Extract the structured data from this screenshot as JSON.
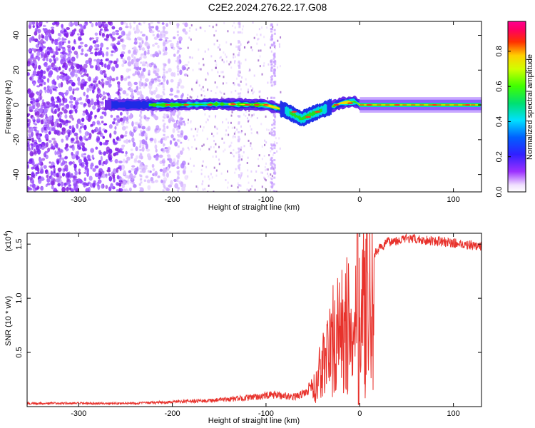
{
  "title": "C2E2.2024.276.22.17.G08",
  "chart_data": [
    {
      "type": "heatmap",
      "xlabel": "Height of straight line (km)",
      "ylabel": "Frequency (Hz)",
      "xlim": [
        -355,
        130
      ],
      "ylim": [
        -50,
        48
      ],
      "xticks": [
        -300,
        -200,
        -100,
        0,
        100
      ],
      "yticks": [
        -40,
        -20,
        0,
        20,
        40
      ],
      "colorbar": {
        "label": "Normalized spectral amplitude",
        "range": [
          0,
          0.97
        ],
        "ticks": [
          "0.0",
          "0.2",
          "0.4",
          "0.6",
          "0.8"
        ],
        "tick_values": [
          0.0,
          0.2,
          0.4,
          0.6,
          0.8
        ],
        "colormap": "rainbow (white-violet-blue-cyan-green-yellow-red-magenta)"
      },
      "center_line": {
        "description": "peak frequency track",
        "points": [
          {
            "x": -270,
            "y": 0
          },
          {
            "x": -200,
            "y": 0
          },
          {
            "x": -150,
            "y": 0.5
          },
          {
            "x": -100,
            "y": 0
          },
          {
            "x": -80,
            "y": -3
          },
          {
            "x": -62,
            "y": -8
          },
          {
            "x": -50,
            "y": -5
          },
          {
            "x": -35,
            "y": -2
          },
          {
            "x": -20,
            "y": 1
          },
          {
            "x": -5,
            "y": 2
          },
          {
            "x": 0,
            "y": 0
          },
          {
            "x": 130,
            "y": 0
          }
        ]
      }
    },
    {
      "type": "line",
      "xlabel": "Height of straight line (km)",
      "ylabel": "SNR (10 * v/v)",
      "y_multiplier": "(x10",
      "y_multiplier_exp": "4",
      "y_multiplier_close": ")",
      "xlim": [
        -355,
        130
      ],
      "ylim": [
        0,
        1.6
      ],
      "xticks": [
        -300,
        -200,
        -100,
        0,
        100
      ],
      "yticks": [
        "0.5",
        "1.0",
        "1.5"
      ],
      "ytick_values": [
        0.5,
        1.0,
        1.5
      ],
      "color": "#e8322c",
      "series": [
        {
          "x": [
            -355,
            -300,
            -250,
            -200,
            -180,
            -150,
            -120,
            -100,
            -90,
            -80,
            -70,
            -60,
            -50,
            -40,
            -30,
            -20,
            -10,
            0,
            10,
            20,
            30,
            50,
            80,
            100,
            130
          ],
          "y": [
            0.03,
            0.03,
            0.03,
            0.04,
            0.05,
            0.06,
            0.08,
            0.1,
            0.11,
            0.1,
            0.09,
            0.12,
            0.2,
            0.55,
            0.85,
            1.0,
            1.1,
            1.25,
            1.35,
            1.45,
            1.52,
            1.55,
            1.53,
            1.51,
            1.48
          ]
        }
      ]
    }
  ]
}
